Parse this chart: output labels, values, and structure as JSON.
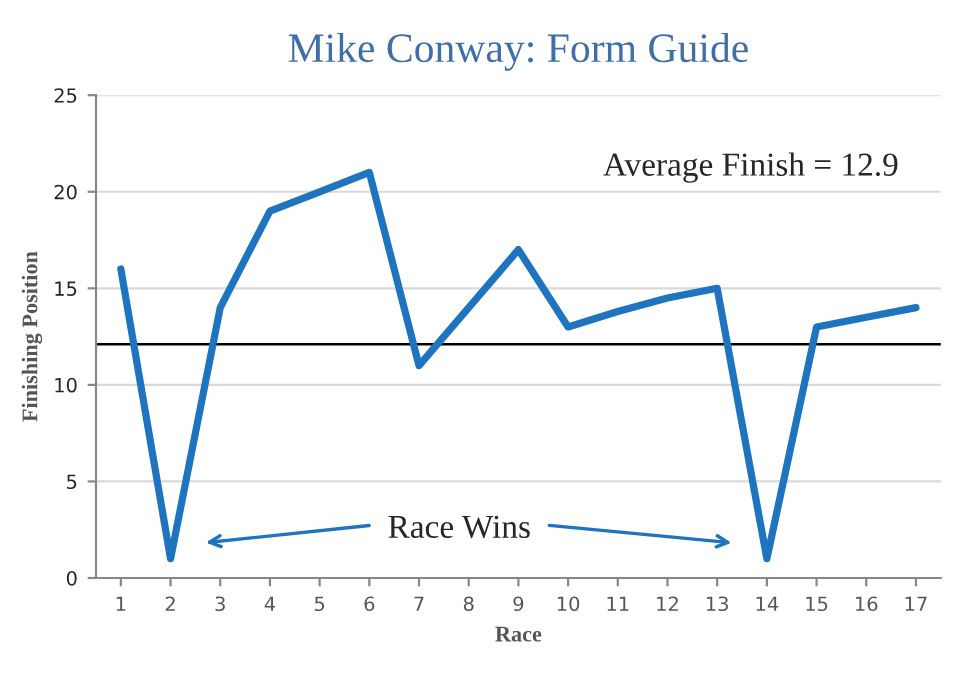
{
  "chart_data": {
    "type": "line",
    "title": "Mike Conway: Form Guide",
    "xlabel": "Race",
    "ylabel": "Finishing Position",
    "categories": [
      "1",
      "2",
      "3",
      "4",
      "5",
      "6",
      "7",
      "8",
      "9",
      "10",
      "11",
      "12",
      "13",
      "14",
      "15",
      "16",
      "17"
    ],
    "series": [
      {
        "color": "#1f74c0",
        "values": [
          16,
          1,
          14,
          19,
          20,
          21,
          11,
          14,
          17,
          13,
          13.8,
          14.5,
          15,
          1,
          13,
          13.5,
          14
        ]
      }
    ],
    "ylim": [
      0,
      25
    ],
    "yticks": [
      0,
      5,
      10,
      15,
      20,
      25
    ],
    "grid": "y",
    "ref_lines": [
      {
        "axis": "y",
        "value": 12.1,
        "color": "#000000"
      }
    ],
    "annotations": [
      "Average Finish = 12.9",
      "Race Wins"
    ],
    "marker": "none",
    "line_style": "solid"
  }
}
